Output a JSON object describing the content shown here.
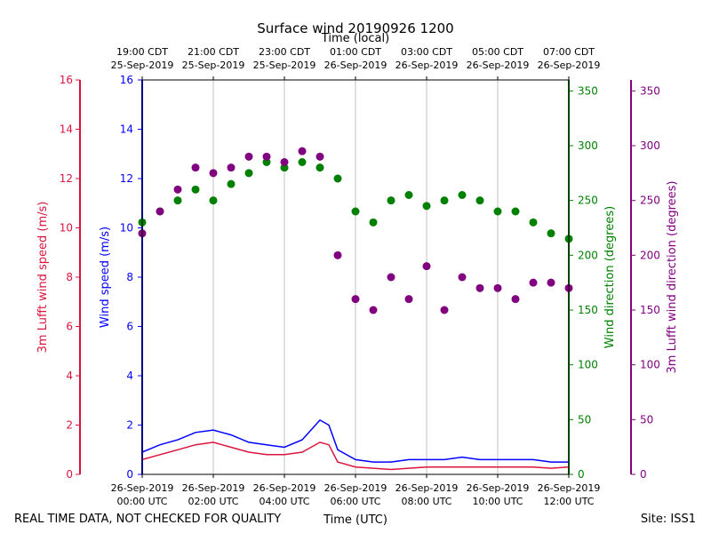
{
  "chart_data": {
    "type": "scatter",
    "title": "Surface wind 20190926 1200",
    "top_axis_label": "Time (local)",
    "xlabel": "Time (UTC)",
    "footer_left": "REAL TIME DATA, NOT CHECKED FOR QUALITY",
    "footer_right": "Site: ISS1",
    "x_range_hours": [
      0,
      12
    ],
    "grid": "vertical",
    "bottom_ticks": [
      {
        "hour": 0,
        "line1": "26-Sep-2019",
        "line2": "00:00 UTC"
      },
      {
        "hour": 2,
        "line1": "26-Sep-2019",
        "line2": "02:00 UTC"
      },
      {
        "hour": 4,
        "line1": "26-Sep-2019",
        "line2": "04:00 UTC"
      },
      {
        "hour": 6,
        "line1": "26-Sep-2019",
        "line2": "06:00 UTC"
      },
      {
        "hour": 8,
        "line1": "26-Sep-2019",
        "line2": "08:00 UTC"
      },
      {
        "hour": 10,
        "line1": "26-Sep-2019",
        "line2": "10:00 UTC"
      },
      {
        "hour": 12,
        "line1": "26-Sep-2019",
        "line2": "12:00 UTC"
      }
    ],
    "top_ticks": [
      {
        "hour": 0,
        "line1": "19:00 CDT",
        "line2": "25-Sep-2019"
      },
      {
        "hour": 2,
        "line1": "21:00 CDT",
        "line2": "25-Sep-2019"
      },
      {
        "hour": 4,
        "line1": "23:00 CDT",
        "line2": "25-Sep-2019"
      },
      {
        "hour": 6,
        "line1": "01:00 CDT",
        "line2": "26-Sep-2019"
      },
      {
        "hour": 8,
        "line1": "03:00 CDT",
        "line2": "26-Sep-2019"
      },
      {
        "hour": 10,
        "line1": "05:00 CDT",
        "line2": "26-Sep-2019"
      },
      {
        "hour": 12,
        "line1": "07:00 CDT",
        "line2": "26-Sep-2019"
      }
    ],
    "axes": {
      "lufft_speed": {
        "label": "3m Lufft wind speed (m/s)",
        "range": [
          0,
          16
        ],
        "ticks": [
          0,
          2,
          4,
          6,
          8,
          10,
          12,
          14,
          16
        ],
        "color": "#dc143c"
      },
      "wind_speed": {
        "label": "Wind speed (m/s)",
        "range": [
          0,
          16
        ],
        "ticks": [
          0,
          2,
          4,
          6,
          8,
          10,
          12,
          14,
          16
        ],
        "color": "#0000ff"
      },
      "wind_dir": {
        "label": "Wind direction (degrees)",
        "range": [
          0,
          360
        ],
        "ticks": [
          0,
          50,
          100,
          150,
          200,
          250,
          300,
          350
        ],
        "color": "#008000"
      },
      "lufft_dir": {
        "label": "3m Lufft wind direction (degrees)",
        "range": [
          0,
          360
        ],
        "ticks": [
          0,
          50,
          100,
          150,
          200,
          250,
          300,
          350
        ],
        "color": "#800080"
      }
    },
    "series": [
      {
        "name": "Wind speed",
        "kind": "line",
        "color": "#0000ff",
        "hours": [
          0,
          0.5,
          1,
          1.5,
          2,
          2.5,
          3,
          3.5,
          4,
          4.5,
          5,
          5.25,
          5.5,
          6,
          6.5,
          7,
          7.5,
          8,
          8.5,
          9,
          9.5,
          10,
          10.5,
          11,
          11.5,
          12
        ],
        "values": [
          0.9,
          1.2,
          1.4,
          1.7,
          1.8,
          1.6,
          1.3,
          1.2,
          1.1,
          1.4,
          2.2,
          2.0,
          1.0,
          0.6,
          0.5,
          0.5,
          0.6,
          0.6,
          0.6,
          0.7,
          0.6,
          0.6,
          0.6,
          0.6,
          0.5,
          0.5
        ]
      },
      {
        "name": "3m Lufft wind speed",
        "kind": "line",
        "color": "#dc143c",
        "hours": [
          0,
          0.5,
          1,
          1.5,
          2,
          2.5,
          3,
          3.5,
          4,
          4.5,
          5,
          5.25,
          5.5,
          6,
          6.5,
          7,
          7.5,
          8,
          8.5,
          9,
          9.5,
          10,
          10.5,
          11,
          11.5,
          12
        ],
        "values": [
          0.6,
          0.8,
          1.0,
          1.2,
          1.3,
          1.1,
          0.9,
          0.8,
          0.8,
          0.9,
          1.3,
          1.2,
          0.5,
          0.3,
          0.25,
          0.2,
          0.25,
          0.3,
          0.3,
          0.3,
          0.3,
          0.3,
          0.3,
          0.3,
          0.25,
          0.3
        ]
      },
      {
        "name": "Wind direction",
        "kind": "scatter",
        "color": "#008000",
        "hours": [
          0,
          0.5,
          1,
          1.5,
          2,
          2.5,
          3,
          3.5,
          4,
          4.5,
          5,
          5.5,
          6,
          6.5,
          7,
          7.5,
          8,
          8.5,
          9,
          9.5,
          10,
          10.5,
          11,
          11.5,
          12
        ],
        "values": [
          230,
          240,
          250,
          260,
          250,
          265,
          275,
          285,
          280,
          285,
          280,
          270,
          240,
          230,
          250,
          255,
          245,
          250,
          255,
          250,
          240,
          240,
          230,
          220,
          215
        ]
      },
      {
        "name": "3m Lufft wind direction",
        "kind": "scatter",
        "color": "#800080",
        "hours": [
          0,
          0.5,
          1,
          1.5,
          2,
          2.5,
          3,
          3.5,
          4,
          4.5,
          5,
          5.5,
          6,
          6.5,
          7,
          7.5,
          8,
          8.5,
          9,
          9.5,
          10,
          10.5,
          11,
          11.5,
          12
        ],
        "values": [
          220,
          240,
          260,
          280,
          275,
          280,
          290,
          290,
          285,
          295,
          290,
          200,
          160,
          150,
          180,
          160,
          190,
          150,
          180,
          170,
          170,
          160,
          175,
          175,
          170
        ]
      }
    ]
  }
}
